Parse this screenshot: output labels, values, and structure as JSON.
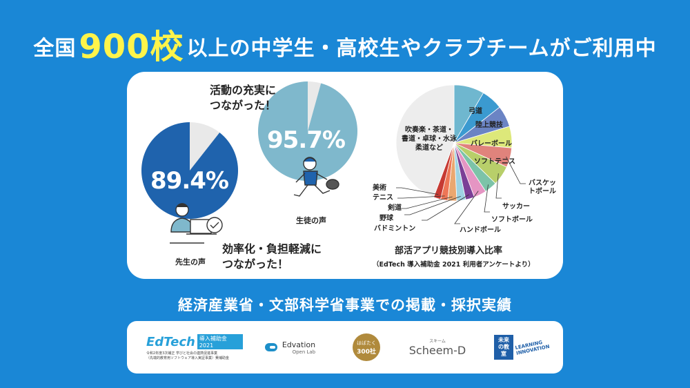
{
  "headline": {
    "prefix": "全国",
    "number": "900校",
    "suffix": "以上の中学生・高校生やクラブチームがご利用中"
  },
  "teacher": {
    "percent": "89.4%",
    "comment_line1": "効率化・負担軽減に",
    "comment_line2": "つながった！",
    "voice": "先生の声",
    "value": 89.4,
    "color": "#1f63ad"
  },
  "student": {
    "percent": "95.7%",
    "comment_line1": "活動の充実に",
    "comment_line2": "つながった！",
    "voice": "生徒の声",
    "value": 95.7,
    "color": "#7fb8cc"
  },
  "chart_data": {
    "type": "pie",
    "title": "部活アプリ競技別導入比率",
    "subtitle": "（EdTech 導入補助金 2021 利用者アンケートより）",
    "slices": [
      {
        "label": "弓道",
        "value": 8.5,
        "color": "#6fb7cf"
      },
      {
        "label": "陸上競技",
        "value": 6.0,
        "color": "#3b9ad0"
      },
      {
        "label": "バレーボール",
        "value": 6.0,
        "color": "#6b84c4"
      },
      {
        "label": "ソフトテニス",
        "value": 6.0,
        "color": "#dde87a"
      },
      {
        "label": "バスケットボール",
        "value": 5.5,
        "color": "#e0837c"
      },
      {
        "label": "サッカー",
        "value": 5.5,
        "color": "#b8cf6a"
      },
      {
        "label": "ソフトボール",
        "value": 3.5,
        "color": "#7cc3a8"
      },
      {
        "label": "ハンドボール",
        "value": 3.5,
        "color": "#e595c3"
      },
      {
        "label": "バドミントン",
        "value": 2.5,
        "color": "#7b3f96"
      },
      {
        "label": "野球",
        "value": 2.5,
        "color": "#9fd3e3"
      },
      {
        "label": "剣道",
        "value": 2.5,
        "color": "#eaa770"
      },
      {
        "label": "テニス",
        "value": 2.0,
        "color": "#ee7656"
      },
      {
        "label": "美術",
        "value": 2.0,
        "color": "#c63a33"
      },
      {
        "label": "吹奏楽・茶道・書道・卓球・水泳・柔道など",
        "value": 44.5,
        "color": "#ededed"
      }
    ],
    "other_label_lines": [
      "吹奏楽・茶道・",
      "書道・卓球・水泳",
      "柔道など"
    ]
  },
  "subtitle": "経済産業省・文部科学省事業での掲載・採択実績",
  "logos": {
    "edtech_main": "EdTech",
    "edtech_badge": "導入補助金2021",
    "edtech_line1": "令和2年度3次補正 学びと社会の連携促進事業",
    "edtech_line2": "（先端的教育用ソフトウェア導入実証事業）費補助金",
    "edvation_name": "Edvation",
    "edvation_sub": "Open Lab",
    "hakataku_title": "はばたく",
    "hakataku_num": "300社",
    "scheem": "Scheem-D",
    "scheem_ruby": "スキーム",
    "mirai_1": "未来",
    "mirai_2": "の教室",
    "learning": "LEARNING",
    "innovation": "INNOVATION"
  }
}
